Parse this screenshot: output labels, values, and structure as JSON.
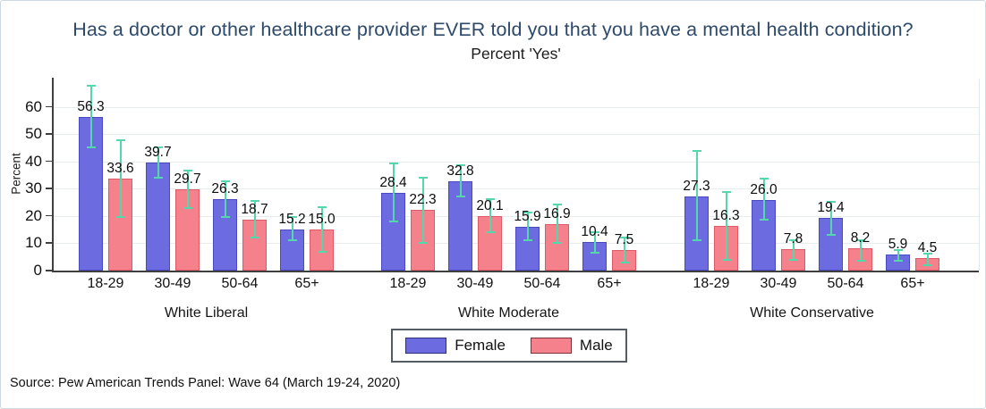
{
  "source": "Source: Pew American Trends Panel: Wave 64 (March 19-24, 2020)",
  "colors": {
    "title": "#2d4a6b",
    "error_bar": "#55d7ab",
    "grid": "#e7eded",
    "axis": "#3f3f3f",
    "plot_right_border": "#e0e9ef"
  },
  "chart_data": {
    "type": "bar",
    "title": "Has a doctor or other healthcare provider EVER told you that you have a mental health condition?",
    "subtitle": "Percent 'Yes'",
    "ylabel": "Percent",
    "xlabel": "",
    "ylim": [
      0,
      70
    ],
    "yticks": [
      0,
      10,
      20,
      30,
      40,
      50,
      60
    ],
    "grid": "horizontal",
    "legend_position": "bottom-center",
    "error_bars": "95% confidence intervals (teal whiskers, capped both ends)",
    "categories": [
      "18-29",
      "30-49",
      "50-64",
      "65+"
    ],
    "legend": [
      {
        "label": "Female",
        "color": "#6c6ce0",
        "border": "#4949c4"
      },
      {
        "label": "Male",
        "color": "#f4818b",
        "border": "#e05a66"
      }
    ],
    "groups": [
      {
        "label": "White Liberal",
        "female": {
          "values": [
            56.3,
            39.7,
            26.3,
            15.2
          ],
          "ci": [
            [
              45,
              68
            ],
            [
              34,
              45.5
            ],
            [
              19.5,
              33
            ],
            [
              11,
              20
            ]
          ]
        },
        "male": {
          "values": [
            33.6,
            29.7,
            18.7,
            15.0
          ],
          "ci": [
            [
              19.5,
              48
            ],
            [
              23,
              37
            ],
            [
              12,
              26
            ],
            [
              7,
              23.5
            ]
          ]
        }
      },
      {
        "label": "White Moderate",
        "female": {
          "values": [
            28.4,
            32.8,
            15.9,
            10.4
          ],
          "ci": [
            [
              18,
              39.5
            ],
            [
              27,
              39
            ],
            [
              11,
              21.5
            ],
            [
              6.5,
              14.5
            ]
          ]
        },
        "male": {
          "values": [
            22.3,
            20.1,
            16.9,
            7.5
          ],
          "ci": [
            [
              10,
              34.5
            ],
            [
              14,
              26.5
            ],
            [
              10,
              24.5
            ],
            [
              3,
              12.5
            ]
          ]
        }
      },
      {
        "label": "White Conservative",
        "female": {
          "values": [
            27.3,
            26.0,
            19.4,
            5.9
          ],
          "ci": [
            [
              11,
              44
            ],
            [
              18.5,
              34
            ],
            [
              13,
              25.5
            ],
            [
              3.5,
              8
            ]
          ]
        },
        "male": {
          "values": [
            16.3,
            7.8,
            8.2,
            4.5
          ],
          "ci": [
            [
              4,
              29
            ],
            [
              4,
              11.5
            ],
            [
              3.5,
              11.5
            ],
            [
              2,
              6.5
            ]
          ]
        }
      }
    ]
  }
}
